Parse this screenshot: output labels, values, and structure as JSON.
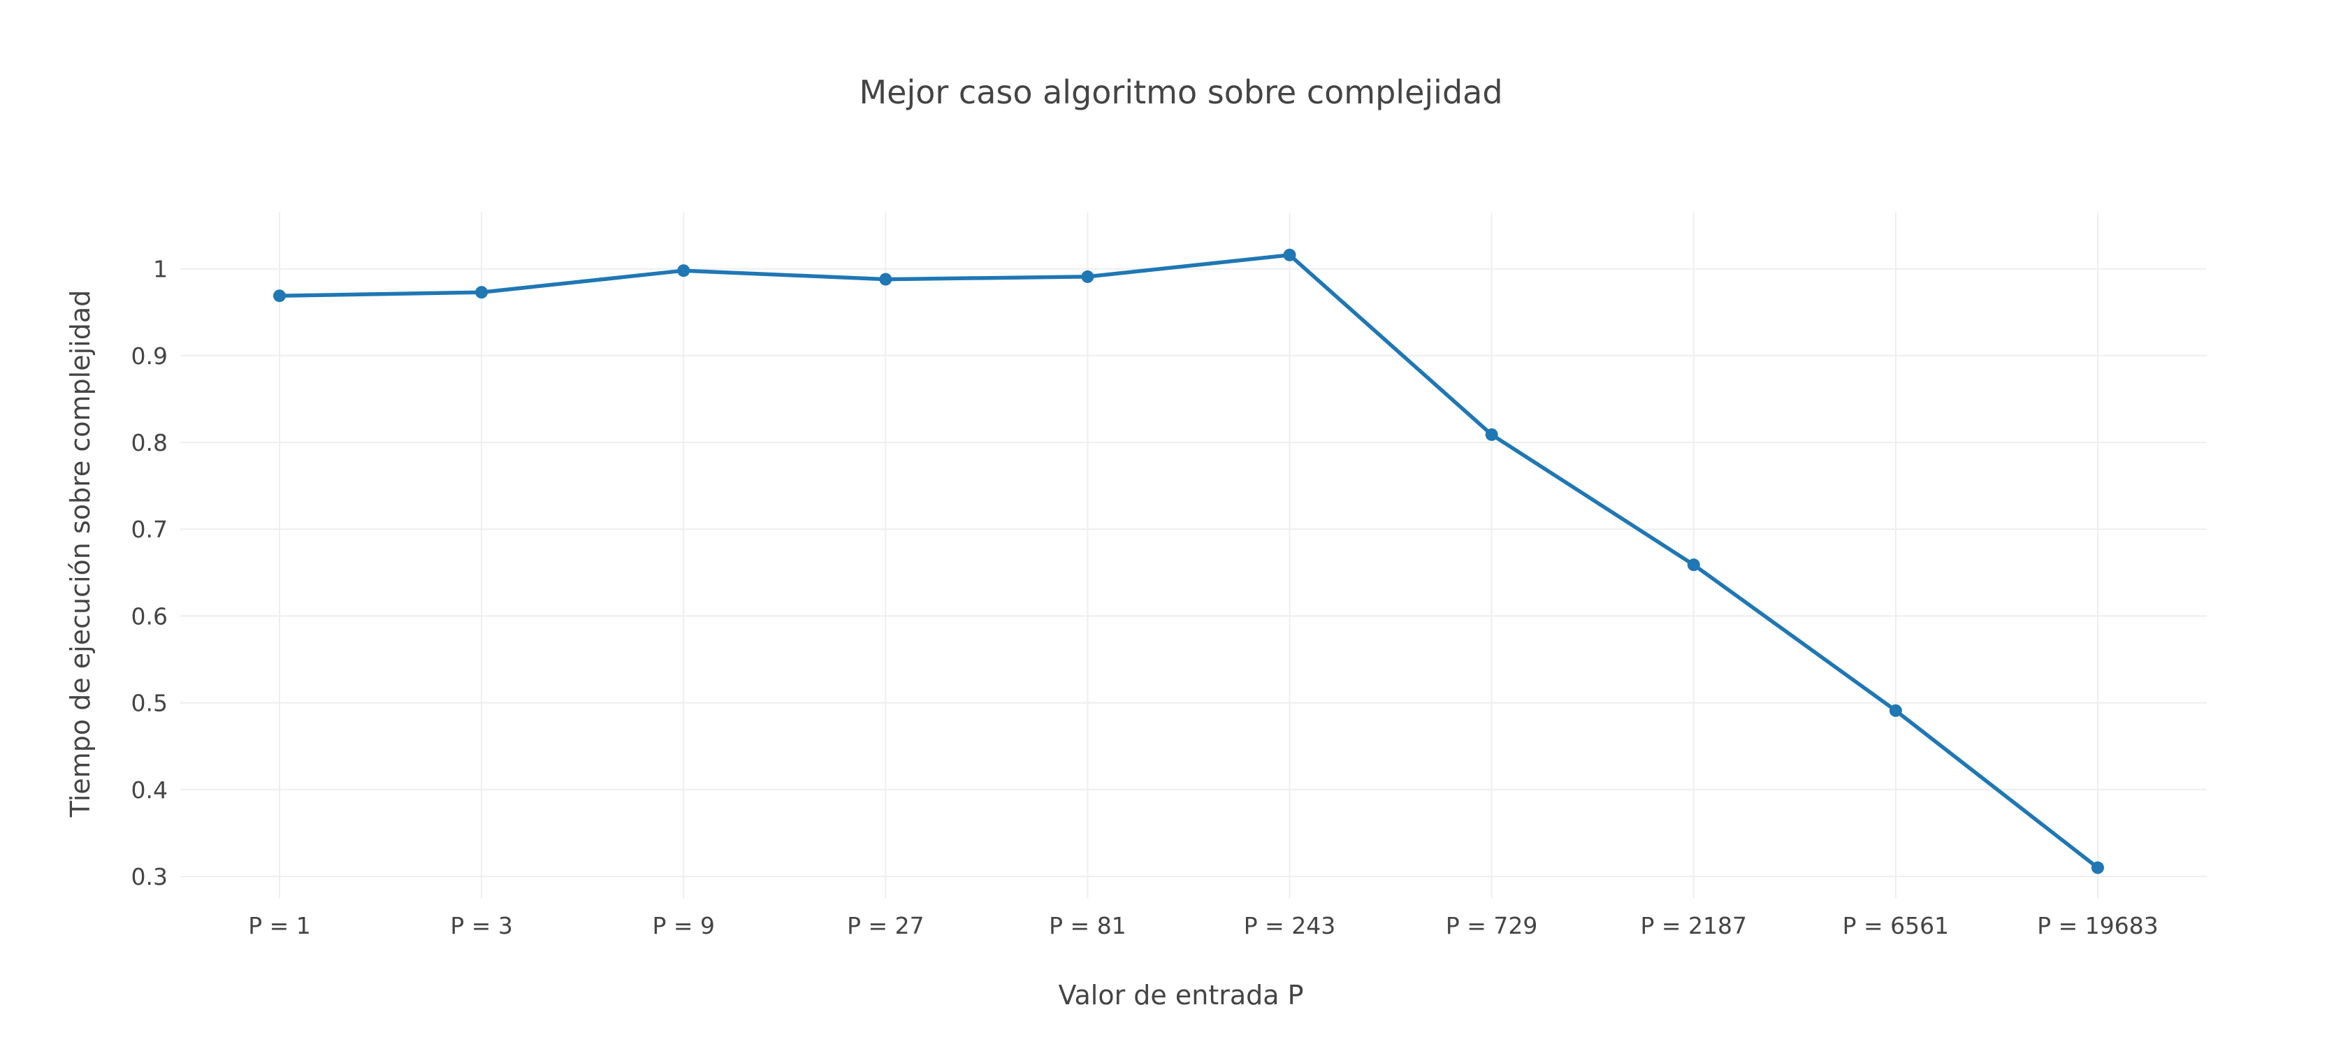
{
  "chart_data": {
    "type": "line",
    "title": "Mejor caso algoritmo sobre complejidad",
    "xlabel": "Valor de entrada P",
    "ylabel": "Tiempo de ejecución sobre complejidad",
    "categories": [
      "P = 1",
      "P = 3",
      "P = 9",
      "P = 27",
      "P = 81",
      "P = 243",
      "P = 729",
      "P = 2187",
      "P = 6561",
      "P = 19683"
    ],
    "series": [
      {
        "values": [
          0.969,
          0.973,
          0.998,
          0.988,
          0.991,
          1.016,
          0.809,
          0.659,
          0.491,
          0.31
        ],
        "color": "#1f77b4"
      }
    ],
    "y_ticks": [
      0.3,
      0.4,
      0.5,
      0.6,
      0.7,
      0.8,
      0.9,
      1
    ],
    "y_tick_labels": [
      "0.3",
      "0.4",
      "0.5",
      "0.6",
      "0.7",
      "0.8",
      "0.9",
      "1"
    ],
    "ylim": [
      0.275,
      1.065
    ],
    "grid": true,
    "legend": "none"
  }
}
